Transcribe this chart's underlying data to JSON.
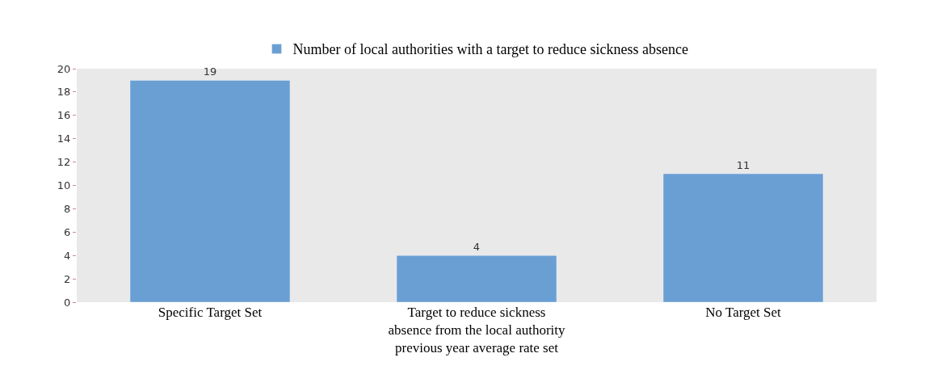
{
  "chart_data": {
    "type": "bar",
    "categories": [
      "Specific Target Set",
      "Target to reduce sickness absence from the local authority previous year average rate set",
      "No Target Set"
    ],
    "series": [
      {
        "name": "Number of local authorities with a target to reduce sickness absence",
        "color": "#6a9fd4",
        "values": [
          19,
          4,
          11
        ]
      }
    ],
    "ylim": [
      0,
      20
    ],
    "yticks": [
      0,
      2,
      4,
      6,
      8,
      10,
      12,
      14,
      16,
      18,
      20
    ],
    "data_labels": true,
    "grid": false,
    "legend": "top"
  }
}
